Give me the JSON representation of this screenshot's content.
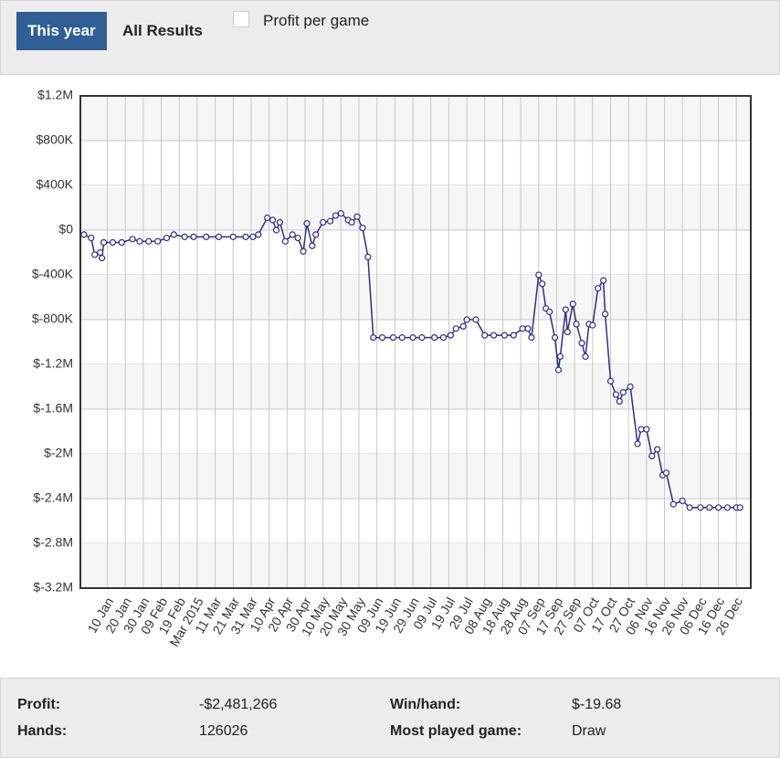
{
  "tabs": [
    "This year",
    "All Results"
  ],
  "active_tab": 0,
  "checkbox_label": "Profit per game",
  "chart_data": {
    "type": "line",
    "color": "#2e2e8a",
    "grid": true,
    "xlim": [
      -5,
      368
    ],
    "ylim": [
      -3200000,
      1200000
    ],
    "xticks": [
      {
        "value": 10,
        "label": "10 Jan"
      },
      {
        "value": 20,
        "label": "20 Jan"
      },
      {
        "value": 30,
        "label": "30 Jan"
      },
      {
        "value": 40,
        "label": "09 Feb"
      },
      {
        "value": 50,
        "label": "19 Feb"
      },
      {
        "value": 60,
        "label": "Mar 2015"
      },
      {
        "value": 70,
        "label": "11 Mar"
      },
      {
        "value": 80,
        "label": "21 Mar"
      },
      {
        "value": 90,
        "label": "31 Mar"
      },
      {
        "value": 100,
        "label": "10 Apr"
      },
      {
        "value": 110,
        "label": "20 Apr"
      },
      {
        "value": 120,
        "label": "30 Apr"
      },
      {
        "value": 130,
        "label": "10 May"
      },
      {
        "value": 140,
        "label": "20 May"
      },
      {
        "value": 150,
        "label": "30 May"
      },
      {
        "value": 160,
        "label": "09 Jun"
      },
      {
        "value": 170,
        "label": "19 Jun"
      },
      {
        "value": 180,
        "label": "29 Jun"
      },
      {
        "value": 190,
        "label": "09 Jul"
      },
      {
        "value": 200,
        "label": "19 Jul"
      },
      {
        "value": 210,
        "label": "29 Jul"
      },
      {
        "value": 220,
        "label": "08 Aug"
      },
      {
        "value": 230,
        "label": "18 Aug"
      },
      {
        "value": 240,
        "label": "28 Aug"
      },
      {
        "value": 250,
        "label": "07 Sep"
      },
      {
        "value": 260,
        "label": "17 Sep"
      },
      {
        "value": 270,
        "label": "27 Sep"
      },
      {
        "value": 280,
        "label": "07 Oct"
      },
      {
        "value": 290,
        "label": "17 Oct"
      },
      {
        "value": 300,
        "label": "27 Oct"
      },
      {
        "value": 310,
        "label": "06 Nov"
      },
      {
        "value": 320,
        "label": "16 Nov"
      },
      {
        "value": 330,
        "label": "26 Nov"
      },
      {
        "value": 340,
        "label": "06 Dec"
      },
      {
        "value": 350,
        "label": "16 Dec"
      },
      {
        "value": 360,
        "label": "26 Dec"
      }
    ],
    "yticks": [
      {
        "value": 1200000,
        "label": "$1.2M"
      },
      {
        "value": 800000,
        "label": "$800K"
      },
      {
        "value": 400000,
        "label": "$400K"
      },
      {
        "value": 0,
        "label": "$0"
      },
      {
        "value": -400000,
        "label": "$-400K"
      },
      {
        "value": -800000,
        "label": "$-800K"
      },
      {
        "value": -1200000,
        "label": "$-1.2M"
      },
      {
        "value": -1600000,
        "label": "$-1.6M"
      },
      {
        "value": -2000000,
        "label": "$-2M"
      },
      {
        "value": -2400000,
        "label": "$-2.4M"
      },
      {
        "value": -2800000,
        "label": "$-2.8M"
      },
      {
        "value": -3200000,
        "label": "$-3.2M"
      }
    ],
    "x": [
      -3,
      1,
      3,
      6,
      7,
      8,
      13,
      18,
      24,
      28,
      33,
      38,
      43,
      47,
      53,
      58,
      65,
      72,
      80,
      87,
      91,
      94,
      99,
      102,
      104,
      106,
      109,
      113,
      116,
      119,
      121,
      124,
      126,
      130,
      134,
      137,
      140,
      144,
      146,
      149,
      152,
      155,
      158,
      163,
      169,
      174,
      180,
      185,
      192,
      197,
      201,
      204,
      208,
      210,
      215,
      220,
      225,
      231,
      236,
      241,
      244,
      246,
      250,
      252,
      254,
      256,
      259,
      261,
      262,
      265,
      266,
      269,
      271,
      274,
      276,
      278,
      280,
      283,
      286,
      287,
      290,
      293,
      295,
      297,
      301,
      305,
      307,
      310,
      313,
      316,
      319,
      321,
      325,
      330,
      334,
      340,
      345,
      350,
      355,
      360,
      362
    ],
    "values": [
      -40000,
      -70000,
      -220000,
      -200000,
      -250000,
      -110000,
      -110000,
      -110000,
      -80000,
      -100000,
      -100000,
      -100000,
      -70000,
      -40000,
      -60000,
      -60000,
      -60000,
      -60000,
      -60000,
      -60000,
      -60000,
      -40000,
      110000,
      90000,
      0,
      70000,
      -100000,
      -40000,
      -70000,
      -190000,
      60000,
      -140000,
      -40000,
      70000,
      80000,
      130000,
      150000,
      90000,
      70000,
      120000,
      20000,
      -240000,
      -960000,
      -960000,
      -960000,
      -960000,
      -960000,
      -960000,
      -960000,
      -960000,
      -940000,
      -880000,
      -860000,
      -800000,
      -800000,
      -940000,
      -940000,
      -940000,
      -940000,
      -880000,
      -880000,
      -960000,
      -400000,
      -480000,
      -700000,
      -730000,
      -960000,
      -1250000,
      -1130000,
      -710000,
      -910000,
      -660000,
      -840000,
      -1010000,
      -1130000,
      -840000,
      -850000,
      -520000,
      -450000,
      -750000,
      -1350000,
      -1470000,
      -1530000,
      -1450000,
      -1400000,
      -1910000,
      -1780000,
      -1780000,
      -2020000,
      -1960000,
      -2190000,
      -2170000,
      -2450000,
      -2420000,
      -2480000,
      -2480000,
      -2480000,
      -2480000,
      -2480000,
      -2480000,
      -2480000
    ]
  },
  "stats": {
    "rows": [
      [
        {
          "label": "Profit:",
          "value": "-$2,481,266"
        },
        {
          "label": "Win/hand:",
          "value": "$-19.68"
        }
      ],
      [
        {
          "label": "Hands:",
          "value": "126026"
        },
        {
          "label": "Most played game:",
          "value": "Draw"
        }
      ]
    ]
  }
}
